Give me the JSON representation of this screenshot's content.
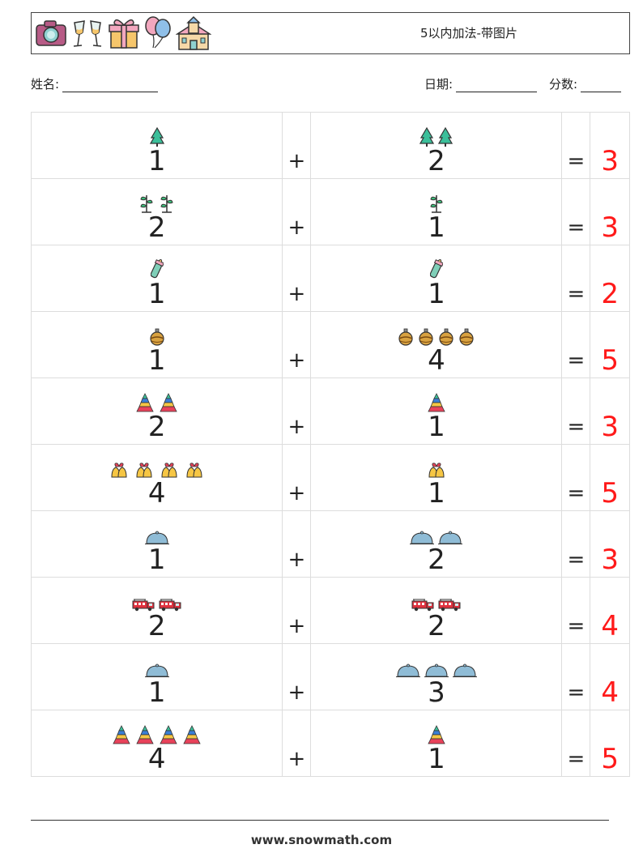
{
  "header": {
    "title": "5以内加法-带图片",
    "icons": [
      "camera-icon",
      "champagne-glasses-icon",
      "gift-icon",
      "balloons-icon",
      "church-icon"
    ]
  },
  "student": {
    "name_label": "姓名:",
    "date_label": "日期:",
    "score_label": "分数:"
  },
  "problems": [
    {
      "a": "1",
      "b": "2",
      "op": "+",
      "eq": "=",
      "ans": "3",
      "icon": "tree-icon"
    },
    {
      "a": "2",
      "b": "1",
      "op": "+",
      "eq": "=",
      "ans": "3",
      "icon": "sprout-icon"
    },
    {
      "a": "1",
      "b": "1",
      "op": "+",
      "eq": "=",
      "ans": "2",
      "icon": "baby-bottle-icon"
    },
    {
      "a": "1",
      "b": "4",
      "op": "+",
      "eq": "=",
      "ans": "5",
      "icon": "ornament-ball-icon"
    },
    {
      "a": "2",
      "b": "1",
      "op": "+",
      "eq": "=",
      "ans": "3",
      "icon": "stacking-pyramid-icon"
    },
    {
      "a": "4",
      "b": "1",
      "op": "+",
      "eq": "=",
      "ans": "5",
      "icon": "bells-icon"
    },
    {
      "a": "1",
      "b": "2",
      "op": "+",
      "eq": "=",
      "ans": "3",
      "icon": "dome-icon"
    },
    {
      "a": "2",
      "b": "2",
      "op": "+",
      "eq": "=",
      "ans": "4",
      "icon": "fire-truck-icon"
    },
    {
      "a": "1",
      "b": "3",
      "op": "+",
      "eq": "=",
      "ans": "4",
      "icon": "dome-icon"
    },
    {
      "a": "4",
      "b": "1",
      "op": "+",
      "eq": "=",
      "ans": "5",
      "icon": "stacking-pyramid-icon"
    }
  ],
  "colors": {
    "answer": "#ff1a1a"
  },
  "footer": {
    "site": "www.snowmath.com"
  }
}
